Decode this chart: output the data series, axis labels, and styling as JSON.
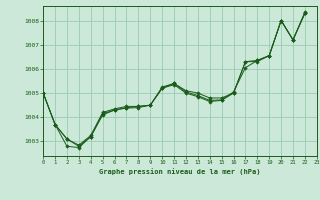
{
  "background_color": "#cce8d8",
  "grid_color": "#99ccb3",
  "line_color": "#1a5c1a",
  "marker_color": "#1a5c1a",
  "xlabel": "Graphe pression niveau de la mer (hPa)",
  "xlabel_color": "#1a5c1a",
  "xlim": [
    0,
    23
  ],
  "ylim": [
    1002.4,
    1008.6
  ],
  "yticks": [
    1003,
    1004,
    1005,
    1006,
    1007,
    1008
  ],
  "xticks": [
    0,
    1,
    2,
    3,
    4,
    5,
    6,
    7,
    8,
    9,
    10,
    11,
    12,
    13,
    14,
    15,
    16,
    17,
    18,
    19,
    20,
    21,
    22,
    23
  ],
  "series": [
    [
      1005.0,
      1003.7,
      1003.1,
      1002.8,
      1003.2,
      1004.15,
      1004.3,
      1004.4,
      1004.45,
      1004.5,
      1005.25,
      1005.4,
      1005.1,
      1005.0,
      1004.8,
      1004.8,
      1005.0,
      1006.3,
      1006.35,
      1006.55,
      1008.0,
      1007.2,
      1008.3,
      null
    ],
    [
      1005.0,
      1003.7,
      1003.1,
      1002.85,
      1003.25,
      1004.2,
      1004.35,
      1004.45,
      1004.45,
      1004.5,
      1005.2,
      1005.4,
      1005.05,
      1004.9,
      1004.7,
      1004.72,
      1005.05,
      1006.05,
      1006.35,
      1006.55,
      1008.0,
      1007.2,
      1008.35,
      null
    ],
    [
      1005.0,
      1003.7,
      1002.8,
      1002.75,
      1003.2,
      1004.1,
      1004.3,
      1004.38,
      1004.4,
      1004.5,
      1005.2,
      1005.35,
      1005.0,
      1004.85,
      1004.65,
      1004.7,
      1005.0,
      1006.3,
      1006.3,
      1006.55,
      1008.0,
      1007.2,
      1008.3,
      null
    ]
  ]
}
